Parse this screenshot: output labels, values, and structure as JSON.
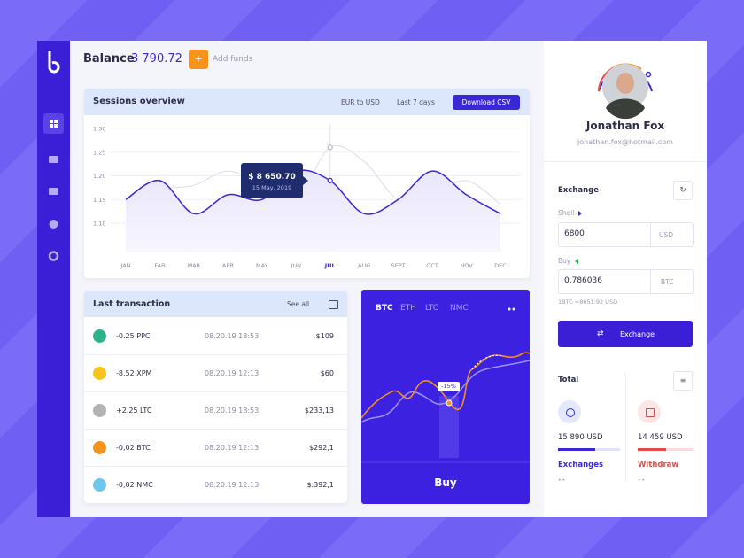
{
  "header": {
    "balance_label": "Balance",
    "balance": "3 790.72",
    "add_icon": "+",
    "add_label": "Add funds"
  },
  "sessions": {
    "title": "Sessions overview",
    "currency": "EUR to USD",
    "period": "Last 7 days",
    "download": "Download CSV",
    "tooltip_value": "$ 8 650.70",
    "tooltip_date": "15 May, 2019"
  },
  "chart_data": {
    "type": "line",
    "categories": [
      "JAN",
      "FAB",
      "MAR",
      "APR",
      "MAY",
      "JUN",
      "JUL",
      "AUG",
      "SEPT",
      "OCT",
      "NOV",
      "DEC"
    ],
    "series": [
      {
        "color": "#3a27d8",
        "values": [
          1.15,
          1.19,
          1.12,
          1.16,
          1.15,
          1.21,
          1.19,
          1.12,
          1.15,
          1.21,
          1.16,
          1.12
        ]
      },
      {
        "color": "#dcdce6",
        "values": [
          1.13,
          1.17,
          1.18,
          1.21,
          1.18,
          1.15,
          1.26,
          1.23,
          1.15,
          1.16,
          1.19,
          1.14
        ]
      }
    ],
    "ylim": [
      1.04,
      1.31
    ],
    "yticks": [
      {
        "value": 1.3,
        "label": "1.30"
      },
      1.25,
      {
        "value": 1.2,
        "label": "1.20"
      },
      1.15,
      {
        "value": 1.1,
        "label": "1.10"
      }
    ],
    "grid": true
  },
  "transactions": {
    "title": "Last transaction",
    "see_all": "See all",
    "rows": [
      {
        "amount": "-0.25 PPC",
        "date": "08.20.19 18:53",
        "value": "$109",
        "color": "#2bb38a"
      },
      {
        "amount": "-8.52 XPM",
        "date": "08.20.19 12:13",
        "value": "$60",
        "color": "#f5c518"
      },
      {
        "amount": "+2.25 LTC",
        "date": "08.20.19 18:53",
        "value": "$233,13",
        "color": "#b3b3b3"
      },
      {
        "amount": "-0,02 BTC",
        "date": "08.20.19 12:13",
        "value": "$292,1",
        "color": "#f7931a"
      },
      {
        "amount": "-0,02 NMC",
        "date": "08.20.19 12:13",
        "value": "$.392,1",
        "color": "#6ec6f0"
      }
    ]
  },
  "crypto": {
    "tabs": [
      "BTC",
      "ETH",
      "LTC",
      "NMC"
    ],
    "badge": "-15%",
    "buy": "Buy"
  },
  "profile": {
    "name": "Jonathan Fox",
    "email": "jonathan.fox@hotmail.com"
  },
  "exchange": {
    "title": "Exchange",
    "sell_label": "Shell",
    "sell_amount": "6800",
    "sell_currency": "USD",
    "buy_label": "Buy",
    "buy_amount": "0.786036",
    "buy_currency": "BTC",
    "rate": "1BTC =8651.92 USD",
    "button": "Exchange"
  },
  "totals": {
    "title": "Total",
    "items": [
      {
        "amount": "15 890 USD",
        "label": "Exchanges",
        "color": "#3a27d8"
      },
      {
        "amount": "14 459 USD",
        "label": "Withdraw",
        "color": "#e24b4b"
      }
    ]
  }
}
